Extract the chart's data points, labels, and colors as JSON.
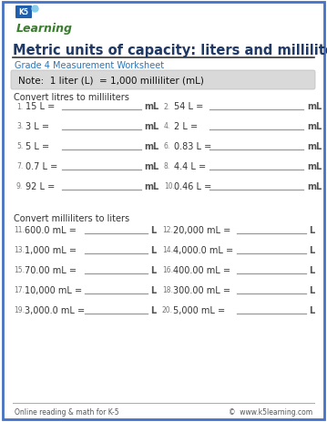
{
  "title": "Metric units of capacity: liters and milliliters",
  "subtitle": "Grade 4 Measurement Worksheet",
  "note": "Note:  1 liter (L)  = 1,000 milliliter (mL)",
  "section1_header": "Convert litres to milliliters",
  "section2_header": "Convert milliliters to liters",
  "col1_problems": [
    {
      "num": "1.",
      "text": "15 L =",
      "unit": "mL"
    },
    {
      "num": "3.",
      "text": "3 L =",
      "unit": "mL"
    },
    {
      "num": "5.",
      "text": "5 L =",
      "unit": "mL"
    },
    {
      "num": "7.",
      "text": "0.7 L =",
      "unit": "mL"
    },
    {
      "num": "9.",
      "text": "92 L =",
      "unit": "mL"
    }
  ],
  "col2_problems": [
    {
      "num": "2.",
      "text": "54 L =",
      "unit": "mL"
    },
    {
      "num": "4.",
      "text": "2 L =",
      "unit": "mL"
    },
    {
      "num": "6.",
      "text": "0.83 L =",
      "unit": "mL"
    },
    {
      "num": "8.",
      "text": "4.4 L =",
      "unit": "mL"
    },
    {
      "num": "10.",
      "text": "0.46 L =",
      "unit": "mL"
    }
  ],
  "col3_problems": [
    {
      "num": "11.",
      "text": "600.0 mL =",
      "unit": "L"
    },
    {
      "num": "13.",
      "text": "1,000 mL =",
      "unit": "L"
    },
    {
      "num": "15.",
      "text": "70.00 mL =",
      "unit": "L"
    },
    {
      "num": "17.",
      "text": "10,000 mL =",
      "unit": "L"
    },
    {
      "num": "19.",
      "text": "3,000.0 mL =",
      "unit": "L"
    }
  ],
  "col4_problems": [
    {
      "num": "12.",
      "text": "20,000 mL =",
      "unit": "L"
    },
    {
      "num": "14.",
      "text": "4,000.0 mL =",
      "unit": "L"
    },
    {
      "num": "16.",
      "text": "400.00 mL =",
      "unit": "L"
    },
    {
      "num": "18.",
      "text": "300.00 mL =",
      "unit": "L"
    },
    {
      "num": "20.",
      "text": "5,000 mL =",
      "unit": "L"
    }
  ],
  "footer_left": "Online reading & math for K-5",
  "footer_right": "©  www.k5learning.com",
  "border_color": "#4472C4",
  "title_color": "#1F3864",
  "subtitle_color": "#2E75B6",
  "note_bg": "#D9D9D9",
  "section_color": "#333333",
  "problem_color": "#333333",
  "num_color": "#777777",
  "unit_color": "#555555",
  "line_color": "#999999",
  "footer_color": "#555555",
  "bg_color": "#FFFFFF",
  "logo_green": "#3A7D2E",
  "logo_blue": "#1F5FAD"
}
